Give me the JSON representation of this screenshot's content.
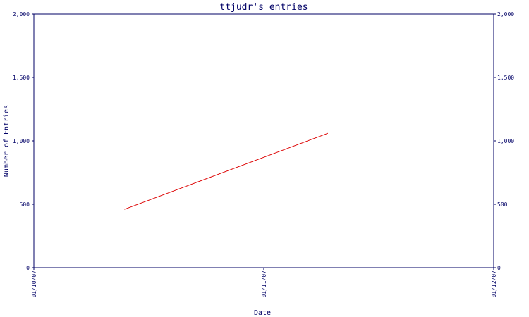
{
  "chart_data": {
    "type": "line",
    "title": "ttjudr's entries",
    "xlabel": "Date",
    "ylabel": "Number of Entries",
    "x_ticks": [
      "01/10/07",
      "01/11/07",
      "01/12/07"
    ],
    "y_ticks": [
      "0",
      "500",
      "1,000",
      "1,500",
      "2,000"
    ],
    "ylim": [
      0,
      2000
    ],
    "xlim": [
      "2007-10-01",
      "2007-12-01"
    ],
    "grid": false,
    "series": [
      {
        "color": "#dd0000",
        "points": [
          {
            "x": "2007-10-13",
            "y": 460
          },
          {
            "x": "2007-11-09",
            "y": 1060
          }
        ]
      }
    ],
    "colors": {
      "axis": "#000066",
      "text": "#000066",
      "line": "#dd0000"
    }
  }
}
